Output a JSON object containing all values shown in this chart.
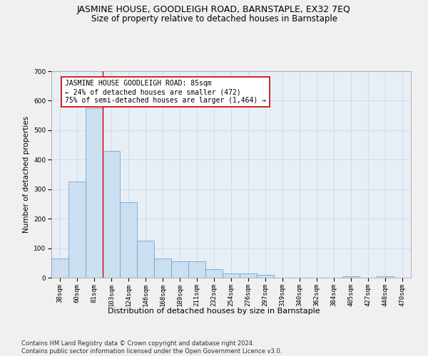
{
  "title": "JASMINE HOUSE, GOODLEIGH ROAD, BARNSTAPLE, EX32 7EQ",
  "subtitle": "Size of property relative to detached houses in Barnstaple",
  "xlabel": "Distribution of detached houses by size in Barnstaple",
  "ylabel": "Number of detached properties",
  "categories": [
    "38sqm",
    "60sqm",
    "81sqm",
    "103sqm",
    "124sqm",
    "146sqm",
    "168sqm",
    "189sqm",
    "211sqm",
    "232sqm",
    "254sqm",
    "276sqm",
    "297sqm",
    "319sqm",
    "340sqm",
    "362sqm",
    "384sqm",
    "405sqm",
    "427sqm",
    "448sqm",
    "470sqm"
  ],
  "values": [
    65,
    325,
    575,
    430,
    255,
    125,
    65,
    55,
    55,
    30,
    15,
    15,
    10,
    0,
    0,
    0,
    0,
    5,
    0,
    5,
    0
  ],
  "bar_color": "#ccdff0",
  "bar_edge_color": "#5b9bd5",
  "grid_color": "#d0d8e8",
  "background_color": "#e8eef5",
  "fig_background_color": "#f0f0f0",
  "vline_color": "#cc0000",
  "annotation_text": "JASMINE HOUSE GOODLEIGH ROAD: 85sqm\n← 24% of detached houses are smaller (472)\n75% of semi-detached houses are larger (1,464) →",
  "annotation_box_color": "#ffffff",
  "annotation_border_color": "#cc0000",
  "ylim": [
    0,
    700
  ],
  "yticks": [
    0,
    100,
    200,
    300,
    400,
    500,
    600,
    700
  ],
  "footer": "Contains HM Land Registry data © Crown copyright and database right 2024.\nContains public sector information licensed under the Open Government Licence v3.0.",
  "title_fontsize": 9,
  "subtitle_fontsize": 8.5,
  "xlabel_fontsize": 8,
  "ylabel_fontsize": 7.5,
  "tick_fontsize": 6.5,
  "annotation_fontsize": 7,
  "footer_fontsize": 6
}
